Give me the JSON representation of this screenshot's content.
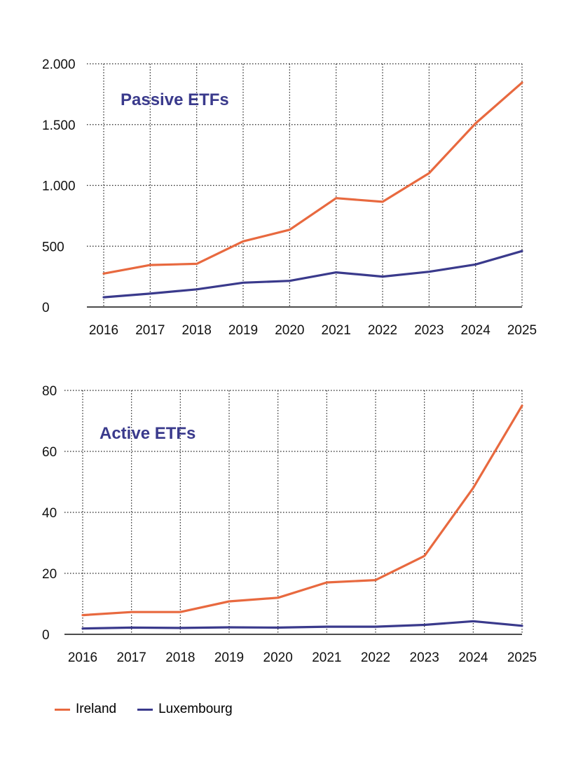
{
  "colors": {
    "ireland": "#E8693F",
    "luxembourg": "#3A3A8C",
    "title": "#3A3A8C",
    "grid": "#222222"
  },
  "legend": {
    "ireland": "Ireland",
    "luxembourg": "Luxembourg"
  },
  "chart_data": [
    {
      "type": "line",
      "title": "Passive ETFs",
      "x": [
        2016,
        2017,
        2018,
        2019,
        2020,
        2021,
        2022,
        2023,
        2024,
        2025
      ],
      "xticks": [
        "2016",
        "2017",
        "2018",
        "2019",
        "2020",
        "2021",
        "2022",
        "2023",
        "2024",
        "2025"
      ],
      "ylim": [
        0,
        2000
      ],
      "yticks": [
        0,
        500,
        1000,
        1500,
        2000
      ],
      "yticklabels": [
        "0",
        "500",
        "1.000",
        "1.500",
        "2.000"
      ],
      "grid": true,
      "series": [
        {
          "name": "Ireland",
          "values": [
            275,
            345,
            355,
            540,
            635,
            895,
            865,
            1100,
            1510,
            1845
          ]
        },
        {
          "name": "Luxembourg",
          "values": [
            80,
            110,
            145,
            200,
            215,
            285,
            250,
            290,
            350,
            460
          ]
        }
      ]
    },
    {
      "type": "line",
      "title": "Active ETFs",
      "x": [
        2016,
        2017,
        2018,
        2019,
        2020,
        2021,
        2022,
        2023,
        2024,
        2025
      ],
      "xticks": [
        "2016",
        "2017",
        "2018",
        "2019",
        "2020",
        "2021",
        "2022",
        "2023",
        "2024",
        "2025"
      ],
      "ylim": [
        0,
        80
      ],
      "yticks": [
        0,
        20,
        40,
        60,
        80
      ],
      "yticklabels": [
        "0",
        "20",
        "40",
        "60",
        "80"
      ],
      "grid": true,
      "series": [
        {
          "name": "Ireland",
          "values": [
            6.3,
            7.3,
            7.3,
            10.8,
            12,
            17,
            17.8,
            25.7,
            48,
            75
          ]
        },
        {
          "name": "Luxembourg",
          "values": [
            1.9,
            2.2,
            2.1,
            2.3,
            2.2,
            2.5,
            2.5,
            3.1,
            4.3,
            2.8
          ]
        }
      ]
    }
  ]
}
